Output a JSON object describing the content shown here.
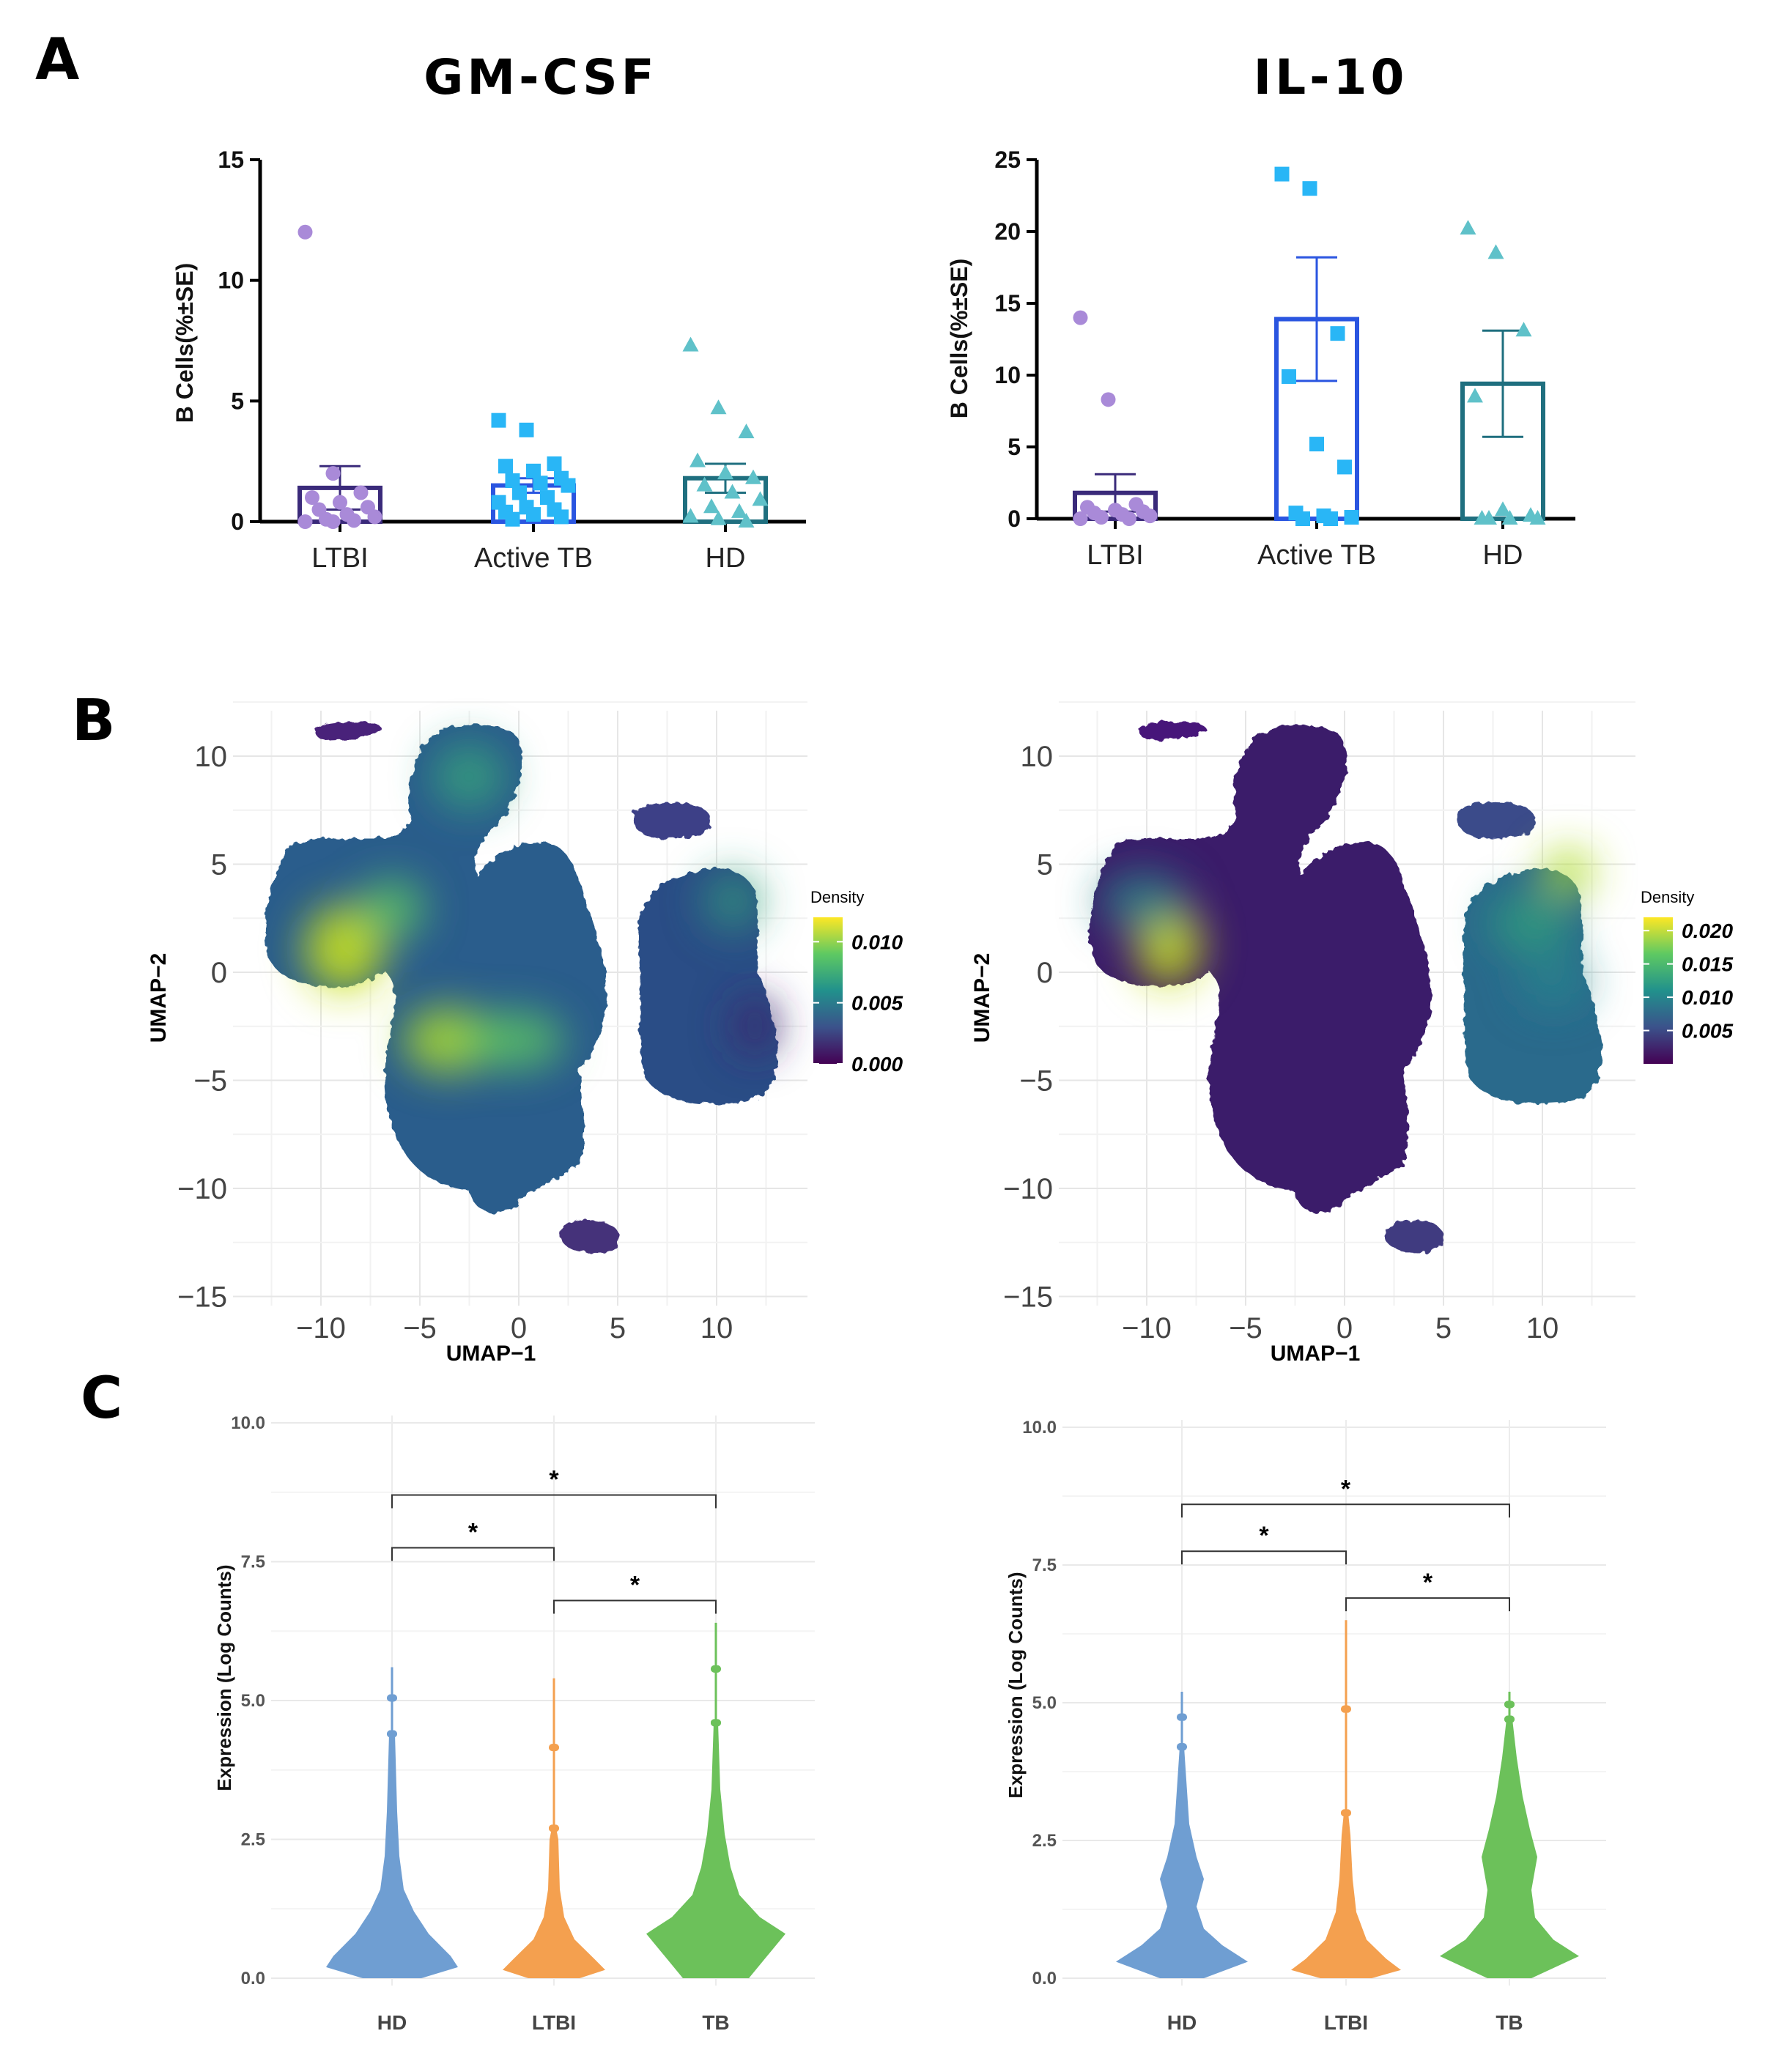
{
  "colors": {
    "ltbi": "#a98ad8",
    "active_tb": "#29b6f6",
    "hd": "#5fc1c9",
    "ltbi_bar": "#3a2a7a",
    "active_tb_bar": "#2a55e0",
    "hd_bar": "#1f6f7f",
    "violin_hd": "#6f9ed2",
    "violin_ltbi": "#f4a04f",
    "violin_tb": "#6cc15a"
  },
  "panel_labels": {
    "a": "A",
    "b": "B",
    "c": "C"
  },
  "chart_data": [
    {
      "id": "A-GM-CSF",
      "type": "bar",
      "title": "GM-CSF",
      "ylabel": "B Cells(%±SE)",
      "ylim": [
        0,
        15
      ],
      "yticks": [
        "0",
        "5",
        "10",
        "15"
      ],
      "categories": [
        "LTBI",
        "Active TB",
        "HD"
      ],
      "values": [
        1.4,
        1.5,
        1.8
      ],
      "errors": [
        0.9,
        0.3,
        0.6
      ],
      "points": [
        [
          12.0,
          2.0,
          1.2,
          1.0,
          0.8,
          0.6,
          0.5,
          0.3,
          0.2,
          0.1,
          0.05,
          0.0,
          0.0
        ],
        [
          4.2,
          3.8,
          2.4,
          2.3,
          2.1,
          1.8,
          1.7,
          1.6,
          1.5,
          1.2,
          1.0,
          0.8,
          0.6,
          0.5,
          0.4,
          0.3,
          0.2,
          0.1
        ],
        [
          7.3,
          4.7,
          3.7,
          2.5,
          2.0,
          1.8,
          1.5,
          1.2,
          0.9,
          0.6,
          0.4,
          0.2,
          0.1,
          0.0
        ]
      ]
    },
    {
      "id": "A-IL-10",
      "type": "bar",
      "title": "IL-10",
      "ylabel": "B Cells(%±SE)",
      "ylim": [
        0,
        25
      ],
      "yticks": [
        "0",
        "5",
        "10",
        "15",
        "20",
        "25"
      ],
      "categories": [
        "LTBI",
        "Active TB",
        "HD"
      ],
      "values": [
        1.8,
        13.9,
        9.4
      ],
      "errors": [
        1.3,
        4.3,
        3.7
      ],
      "points": [
        [
          14.0,
          8.3,
          1.0,
          0.8,
          0.6,
          0.5,
          0.4,
          0.3,
          0.2,
          0.1,
          0.0,
          0.0
        ],
        [
          24.0,
          23.0,
          12.9,
          9.9,
          5.2,
          3.6,
          0.4,
          0.2,
          0.1,
          0.0,
          0.0
        ],
        [
          20.2,
          18.5,
          13.1,
          8.5,
          0.6,
          0.2,
          0.0,
          0.0,
          0.0,
          0.0
        ]
      ]
    },
    {
      "id": "B-left",
      "type": "heatmap",
      "xlabel": "UMAP−1",
      "ylabel": "UMAP−2",
      "xlim": [
        -14,
        14
      ],
      "ylim": [
        -15,
        12
      ],
      "xticks": [
        "−10",
        "−5",
        "0",
        "5",
        "10"
      ],
      "yticks": [
        "10",
        "5",
        "0",
        "−5",
        "−10",
        "−15"
      ],
      "legend_title": "Density",
      "legend_ticks": [
        "0.010",
        "0.005",
        "0.000"
      ],
      "legend_range": [
        0.0,
        0.012
      ]
    },
    {
      "id": "B-right",
      "type": "heatmap",
      "xlabel": "UMAP−1",
      "ylabel": "UMAP−2",
      "xlim": [
        -14,
        14
      ],
      "ylim": [
        -15,
        12
      ],
      "xticks": [
        "−10",
        "−5",
        "0",
        "5",
        "10"
      ],
      "yticks": [
        "10",
        "5",
        "0",
        "−5",
        "−10",
        "−15"
      ],
      "legend_title": "Density",
      "legend_ticks": [
        "0.020",
        "0.015",
        "0.010",
        "0.005"
      ],
      "legend_range": [
        0.0,
        0.022
      ]
    },
    {
      "id": "C-left",
      "type": "violin",
      "ylabel": "Expression (Log Counts)",
      "ylim": [
        0,
        10
      ],
      "yticks": [
        "0.0",
        "2.5",
        "5.0",
        "7.5",
        "10.0"
      ],
      "categories": [
        "HD",
        "LTBI",
        "TB"
      ],
      "max_values": [
        5.6,
        5.4,
        6.4
      ],
      "significance": [
        {
          "pair": [
            "HD",
            "LTBI"
          ],
          "label": "*",
          "y": 7.75
        },
        {
          "pair": [
            "LTBI",
            "TB"
          ],
          "label": "*",
          "y": 6.8
        },
        {
          "pair": [
            "HD",
            "TB"
          ],
          "label": "*",
          "y": 8.7
        }
      ]
    },
    {
      "id": "C-right",
      "type": "violin",
      "ylabel": "Expression (Log Counts)",
      "ylim": [
        0,
        10
      ],
      "yticks": [
        "0.0",
        "2.5",
        "5.0",
        "7.5",
        "10.0"
      ],
      "categories": [
        "HD",
        "LTBI",
        "TB"
      ],
      "max_values": [
        5.2,
        6.5,
        5.2
      ],
      "significance": [
        {
          "pair": [
            "HD",
            "LTBI"
          ],
          "label": "*",
          "y": 7.75
        },
        {
          "pair": [
            "LTBI",
            "TB"
          ],
          "label": "*",
          "y": 6.9
        },
        {
          "pair": [
            "HD",
            "TB"
          ],
          "label": "*",
          "y": 8.6
        }
      ]
    }
  ]
}
